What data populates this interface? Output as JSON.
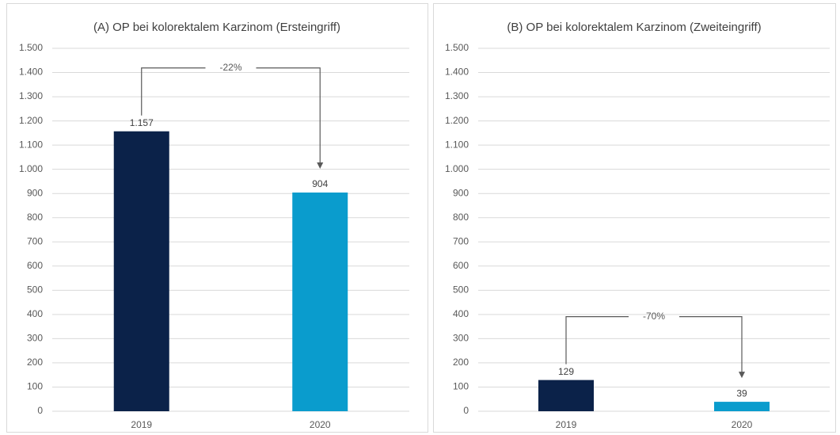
{
  "chart_data": [
    {
      "type": "bar",
      "title": "(A) OP bei kolorektalem Karzinom (Ersteingriff)",
      "categories": [
        "2019",
        "2020"
      ],
      "values": [
        1157,
        904
      ],
      "value_labels": [
        "1.157",
        "904"
      ],
      "colors": [
        "#0b2249",
        "#0a9ccd"
      ],
      "annotation": "-22%",
      "ylim": [
        0,
        1500
      ],
      "yticks": [
        0,
        100,
        200,
        300,
        400,
        500,
        600,
        700,
        800,
        900,
        {
          "value": 1000,
          "label": "1.000"
        },
        {
          "value": 1100,
          "label": "1.100"
        },
        {
          "value": 1200,
          "label": "1.200"
        },
        {
          "value": 1300,
          "label": "1.300"
        },
        {
          "value": 1400,
          "label": "1.400"
        },
        {
          "value": 1500,
          "label": "1.500"
        }
      ],
      "grid": true
    },
    {
      "type": "bar",
      "title": "(B) OP bei kolorektalem Karzinom (Zweiteingriff)",
      "categories": [
        "2019",
        "2020"
      ],
      "values": [
        129,
        39
      ],
      "colors": [
        "#0b2249",
        "#0a9ccd"
      ],
      "annotation": "-70%",
      "ylim": [
        0,
        1500
      ],
      "yticks": [
        0,
        100,
        200,
        300,
        400,
        500,
        600,
        700,
        800,
        900,
        {
          "value": 1000,
          "label": "1.000"
        },
        {
          "value": 1100,
          "label": "1.100"
        },
        {
          "value": 1200,
          "label": "1.200"
        },
        {
          "value": 1300,
          "label": "1.300"
        },
        {
          "value": 1400,
          "label": "1.400"
        },
        {
          "value": 1500,
          "label": "1.500"
        }
      ],
      "grid": true
    }
  ]
}
